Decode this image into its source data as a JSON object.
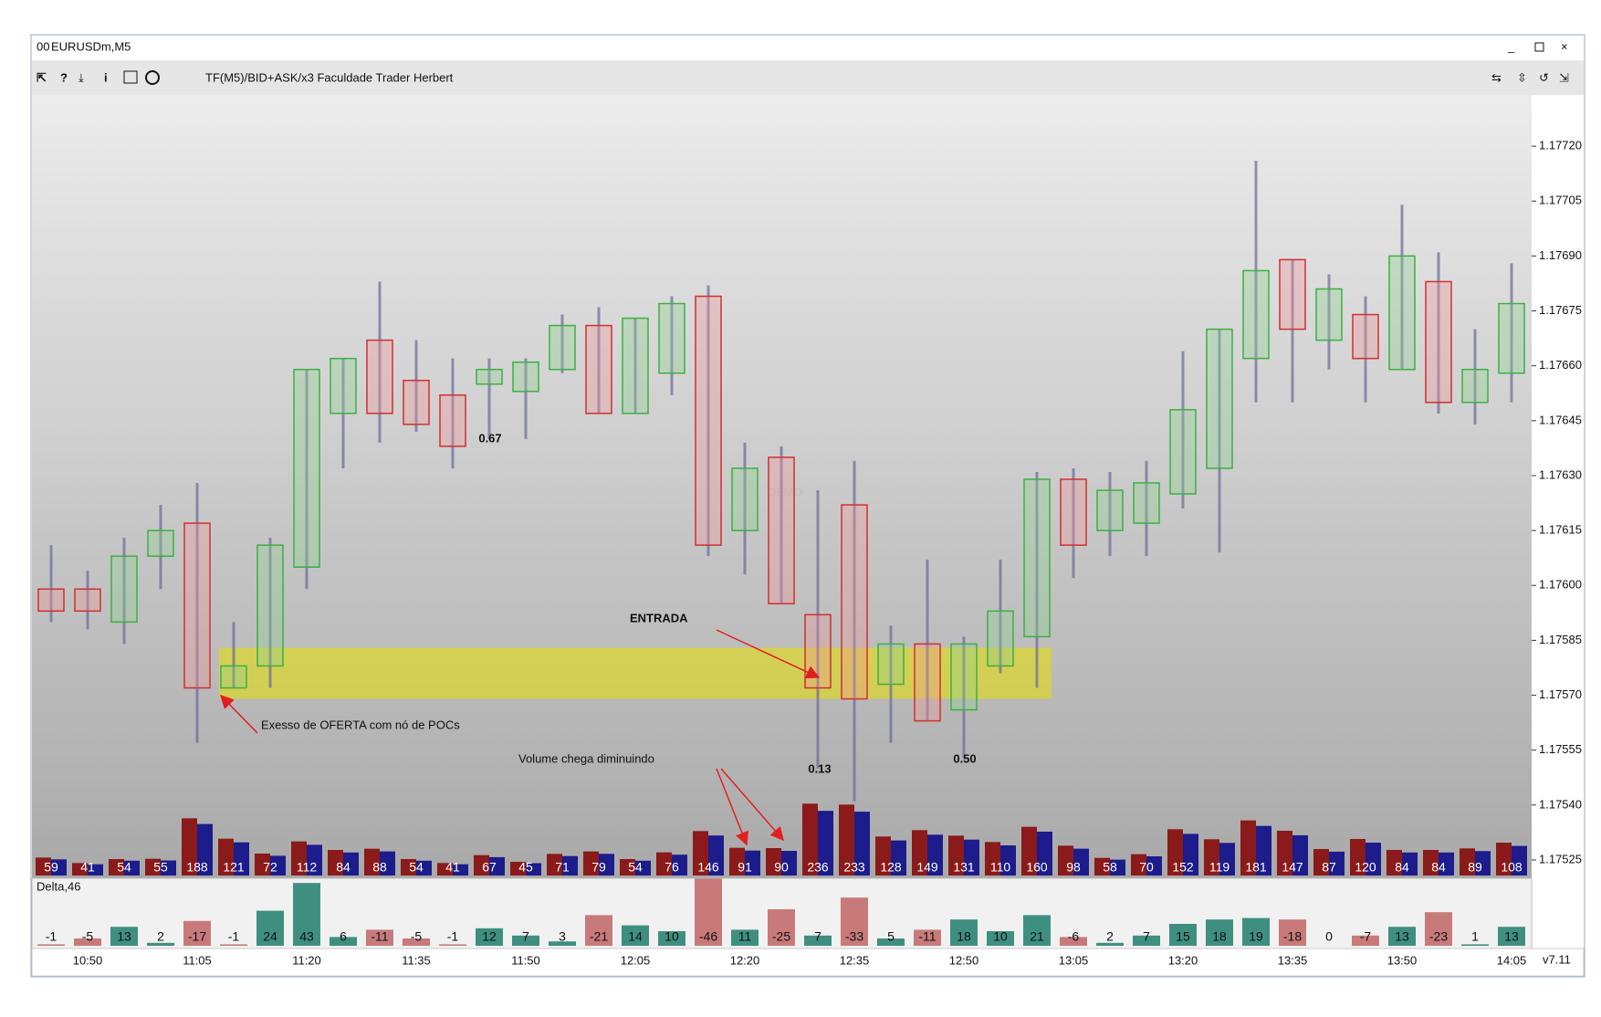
{
  "chart_data": {
    "type": "candlestick",
    "title": "EURUSDm,M5",
    "subtitle": "TF(M5)/BID+ASK/x3  Faculdade Trader Herbert",
    "watermark": "DEMO",
    "version": "v7.11",
    "categories": [
      null,
      "10:50",
      null,
      null,
      "11:05",
      null,
      null,
      "11:20",
      null,
      null,
      "11:35",
      null,
      null,
      "11:50",
      null,
      null,
      "12:05",
      null,
      null,
      "12:20",
      null,
      null,
      "12:35",
      null,
      null,
      "12:50",
      null,
      null,
      "13:05",
      null,
      null,
      "13:20",
      null,
      null,
      "13:35",
      null,
      null,
      "13:50",
      null,
      null,
      "14:05"
    ],
    "open": [
      1.17599,
      1.17599,
      1.1759,
      1.17608,
      1.17617,
      1.17572,
      1.17578,
      1.17605,
      1.17647,
      1.17667,
      1.17656,
      1.17652,
      1.17655,
      1.17653,
      1.17659,
      1.17671,
      1.17647,
      1.17658,
      1.17679,
      1.17615,
      1.17635,
      1.17592,
      1.17622,
      1.17573,
      1.17584,
      1.17566,
      1.17578,
      1.17586,
      1.17629,
      1.17615,
      1.17617,
      1.17625,
      1.17632,
      1.17662,
      1.17689,
      1.17667,
      1.17674,
      1.17659,
      1.17683,
      1.1765,
      1.17658
    ],
    "high": [
      1.17611,
      1.17604,
      1.17613,
      1.17622,
      1.17628,
      1.1759,
      1.17613,
      1.17659,
      1.17662,
      1.17683,
      1.17667,
      1.17662,
      1.17662,
      1.17662,
      1.17674,
      1.17676,
      1.17673,
      1.17679,
      1.17682,
      1.17639,
      1.17638,
      1.17626,
      1.17634,
      1.17589,
      1.17607,
      1.17586,
      1.17607,
      1.17631,
      1.17632,
      1.17631,
      1.17634,
      1.17664,
      1.1767,
      1.17716,
      1.17689,
      1.17685,
      1.17679,
      1.17704,
      1.17691,
      1.1767,
      1.17688
    ],
    "low": [
      1.1759,
      1.17588,
      1.17584,
      1.17599,
      1.17557,
      1.17572,
      1.17572,
      1.17599,
      1.17632,
      1.17639,
      1.17642,
      1.17632,
      1.1764,
      1.1764,
      1.17658,
      1.17647,
      1.17647,
      1.17652,
      1.17608,
      1.17603,
      1.17595,
      1.1755,
      1.17541,
      1.17557,
      1.17563,
      1.17553,
      1.17576,
      1.17572,
      1.17602,
      1.17608,
      1.17608,
      1.17621,
      1.17609,
      1.1765,
      1.1765,
      1.17659,
      1.1765,
      1.17659,
      1.17647,
      1.17644,
      1.1765
    ],
    "close": [
      1.17593,
      1.17593,
      1.17608,
      1.17615,
      1.17572,
      1.17578,
      1.17611,
      1.17659,
      1.17662,
      1.17647,
      1.17644,
      1.17638,
      1.17659,
      1.17661,
      1.17671,
      1.17647,
      1.17673,
      1.17677,
      1.17611,
      1.17632,
      1.17595,
      1.17572,
      1.17569,
      1.17584,
      1.17563,
      1.17584,
      1.17593,
      1.17629,
      1.17611,
      1.17626,
      1.17628,
      1.17648,
      1.1767,
      1.17686,
      1.1767,
      1.17681,
      1.17662,
      1.1769,
      1.1765,
      1.17659,
      1.17677
    ],
    "ylim": [
      1.1752,
      1.17734
    ],
    "yticks": [
      {
        "value": 1.1772,
        "label": "1.17720"
      },
      1.17705,
      {
        "value": 1.1769,
        "label": "1.17690"
      },
      1.17675,
      {
        "value": 1.1766,
        "label": "1.17660"
      },
      1.17645,
      {
        "value": 1.1763,
        "label": "1.17630"
      },
      1.17615,
      {
        "value": 1.176,
        "label": "1.17600"
      },
      1.17585,
      {
        "value": 1.1757,
        "label": "1.17570"
      },
      1.17555,
      {
        "value": 1.1754,
        "label": "1.17540"
      },
      1.17525
    ],
    "up_color": "#3cb043",
    "down_color": "#d03030",
    "highlight": {
      "low": 1.17569,
      "high": 1.17583,
      "color": "#e8e000"
    },
    "volume": {
      "values": [
        59,
        41,
        54,
        55,
        188,
        121,
        72,
        112,
        84,
        88,
        54,
        41,
        67,
        45,
        71,
        79,
        54,
        76,
        146,
        91,
        90,
        236,
        233,
        128,
        149,
        131,
        110,
        160,
        98,
        58,
        70,
        152,
        119,
        181,
        147,
        87,
        120,
        84,
        84,
        89,
        108
      ],
      "ylim": [
        0,
        240
      ],
      "colors": [
        "#8b1a1a",
        "#1c1c8c"
      ]
    },
    "delta": {
      "name": "Delta,46",
      "values": [
        -1,
        -5,
        13,
        2,
        -17,
        -1,
        24,
        43,
        6,
        -11,
        -5,
        -1,
        12,
        7,
        3,
        -21,
        14,
        10,
        -46,
        11,
        -25,
        7,
        -33,
        5,
        -11,
        18,
        10,
        21,
        -6,
        2,
        7,
        15,
        18,
        19,
        -18,
        0,
        -7,
        13,
        -23,
        1,
        13
      ],
      "ylim": [
        0,
        50
      ],
      "positive_color": "#3f8f80",
      "negative_color": "#c87a7a"
    },
    "annotations": [
      "ENTRADA",
      "Exesso de OFERTA com nó de POCs",
      "Volume chega diminuindo"
    ],
    "ratio_labels": [
      "0.67",
      "0.13",
      "0.50"
    ]
  }
}
